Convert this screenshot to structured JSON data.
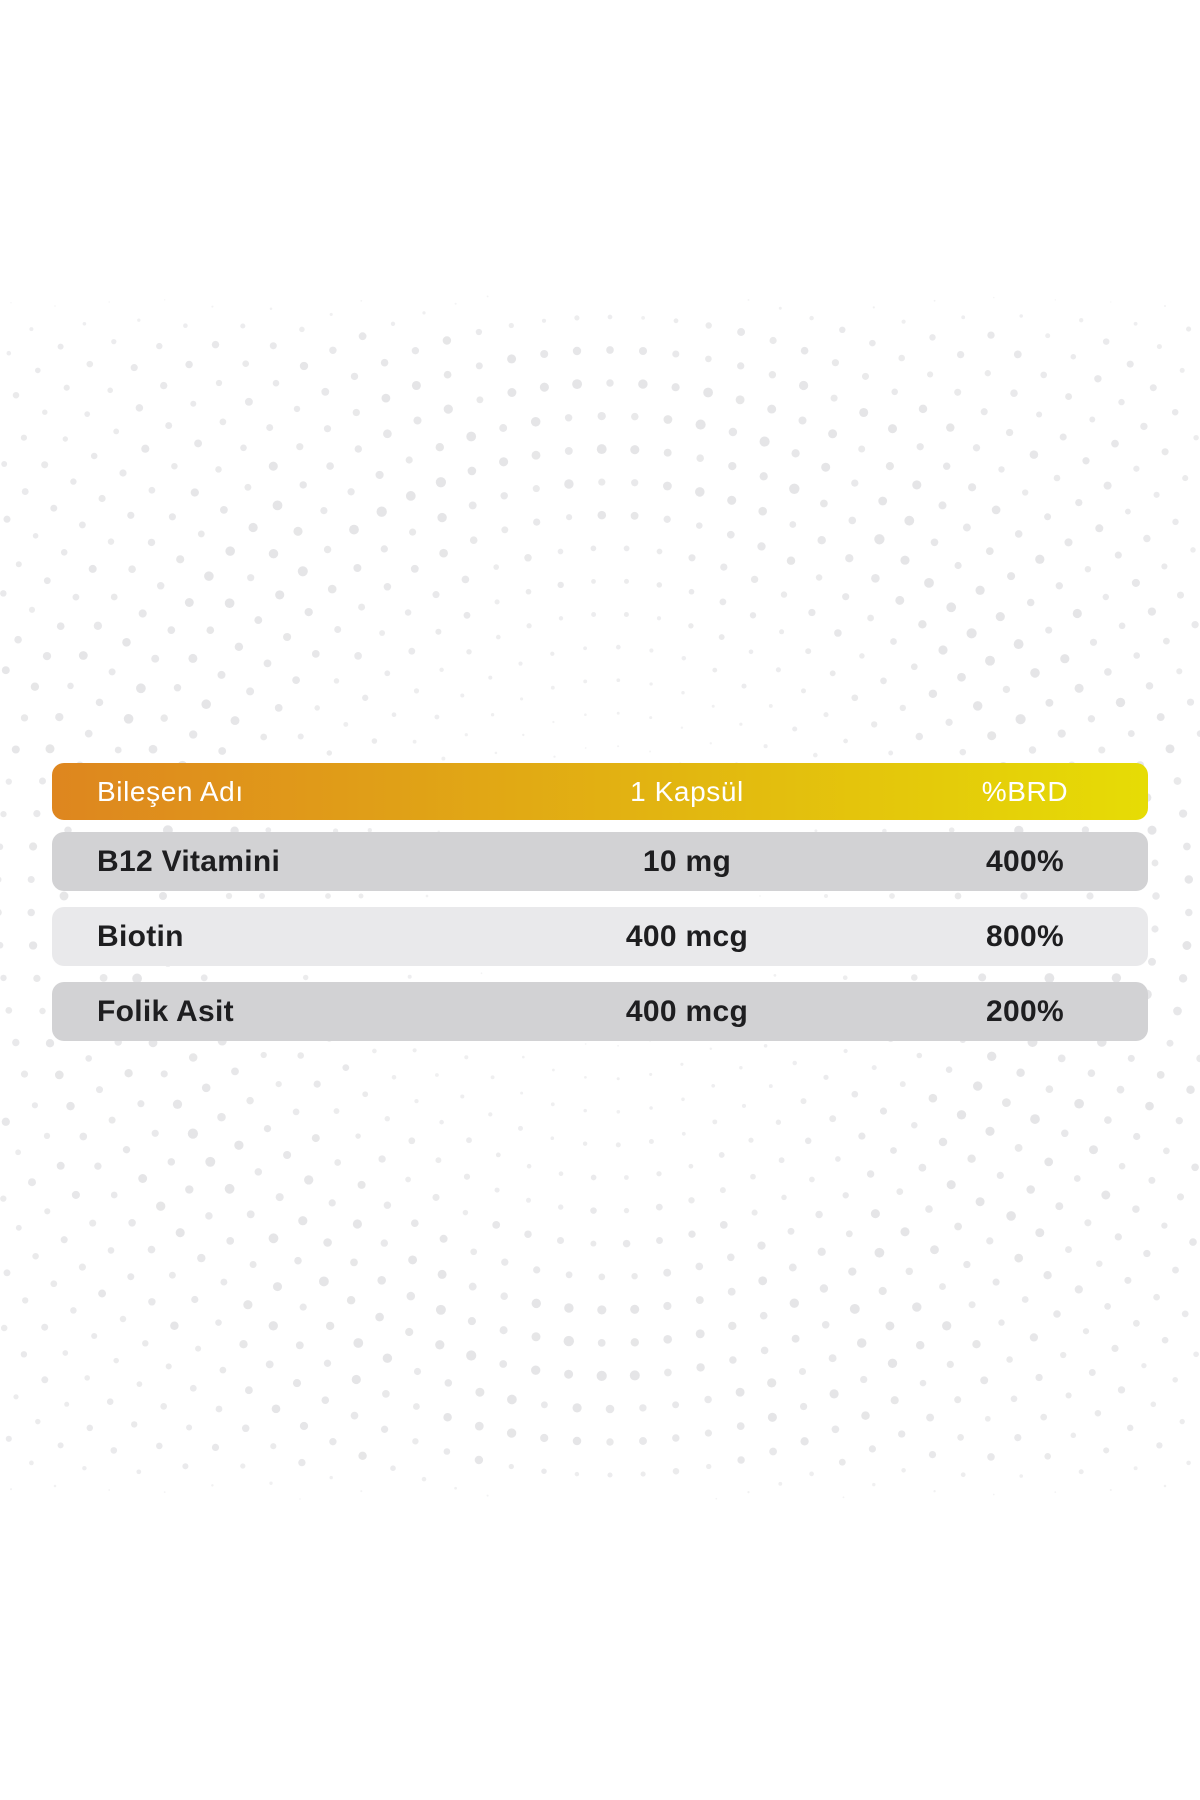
{
  "page": {
    "background": "#FFFFFF"
  },
  "colors": {
    "header_grad_start": "#DE861F",
    "header_grad_mid": "#E2B411",
    "header_grad_end": "#E6DC05",
    "header_text": "#FFFFFF",
    "row_dark": "#D2D2D4",
    "row_light": "#E9E9EB",
    "row_text": "#1E1E20",
    "dot_color": "#E4E4E6"
  },
  "table": {
    "header": {
      "component": "Bileşen Adı",
      "serving": "1 Kapsül",
      "brd": "%BRD"
    },
    "rows": [
      {
        "component": "B12 Vitamini",
        "amount": "10 mg",
        "brd": "400%"
      },
      {
        "component": "Biotin",
        "amount": "400 mcg",
        "brd": "800%"
      },
      {
        "component": "Folik Asit",
        "amount": "400 mcg",
        "brd": "200%"
      }
    ]
  },
  "chart_data": {
    "type": "table",
    "columns": [
      "Bileşen Adı",
      "1 Kapsül",
      "%BRD"
    ],
    "rows": [
      [
        "B12 Vitamini",
        "10 mg",
        "400%"
      ],
      [
        "Biotin",
        "400 mcg",
        "800%"
      ],
      [
        "Folik Asit",
        "400 mcg",
        "200%"
      ]
    ]
  }
}
